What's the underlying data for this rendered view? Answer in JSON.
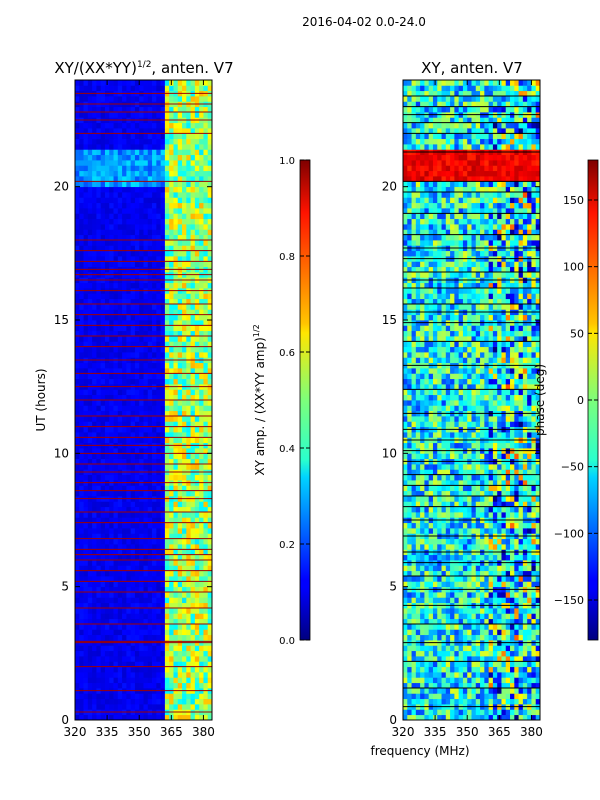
{
  "figure": {
    "suptitle": "2016-04-02 0.0-24.0",
    "shared_xlabel": "frequency (MHz)"
  },
  "chart_data": [
    {
      "type": "heatmap",
      "title_main": "XY/(XX*YY)",
      "title_sup": "1/2",
      "title_tail": ", anten. V7",
      "xlabel": "",
      "ylabel": "UT (hours)",
      "xlim": [
        320,
        384
      ],
      "ylim": [
        0,
        24
      ],
      "xticks": [
        "320",
        "335",
        "350",
        "365",
        "380"
      ],
      "xtick_values": [
        320,
        335,
        350,
        365,
        380
      ],
      "yticks": [
        "0",
        "5",
        "10",
        "15",
        "20"
      ],
      "ytick_values": [
        0,
        5,
        10,
        15,
        20
      ],
      "colorbar": {
        "label_main": "XY amp. / (XX*YY amp)",
        "label_sup": "1/2",
        "range": [
          0.0,
          1.0
        ],
        "ticks": [
          "0.0",
          "0.2",
          "0.4",
          "0.6",
          "0.8",
          "1.0"
        ],
        "tick_values": [
          0.0,
          0.2,
          0.4,
          0.6,
          0.8,
          1.0
        ],
        "colormap": "jet"
      },
      "features": {
        "background_value": 0.08,
        "bright_band_start_mhz": 362,
        "bright_band_value": 0.55,
        "flagged_hours": [
          0.3,
          1.1,
          2.0,
          2.9,
          2.95,
          3.6,
          4.2,
          4.8,
          5.2,
          5.6,
          6.0,
          6.2,
          6.4,
          6.8,
          7.4,
          7.8,
          8.3,
          8.6,
          8.9,
          9.3,
          9.6,
          10.0,
          10.3,
          10.6,
          11.0,
          11.4,
          12.0,
          12.5,
          13.0,
          13.5,
          14.0,
          14.4,
          14.8,
          15.2,
          15.6,
          16.1,
          16.5,
          16.7,
          16.9,
          17.2,
          17.6,
          18.0,
          20.2,
          22.0,
          22.5,
          22.8,
          23.1,
          23.5
        ],
        "elevated_band_hours": [
          20.1,
          21.3
        ],
        "elevated_band_value": 0.2
      }
    },
    {
      "type": "heatmap",
      "title_main": "XY, anten. V7",
      "xlabel": "frequency (MHz)",
      "ylabel": "",
      "xlim": [
        320,
        384
      ],
      "ylim": [
        0,
        24
      ],
      "xticks": [
        "320",
        "335",
        "350",
        "365",
        "380"
      ],
      "xtick_values": [
        320,
        335,
        350,
        365,
        380
      ],
      "yticks": [
        "0",
        "5",
        "10",
        "15",
        "20"
      ],
      "ytick_values": [
        0,
        5,
        10,
        15,
        20
      ],
      "colorbar": {
        "label": "phase (deg)",
        "range": [
          -180,
          180
        ],
        "ticks": [
          "−150",
          "−100",
          "−50",
          "0",
          "50",
          "100",
          "150"
        ],
        "tick_values": [
          -150,
          -100,
          -50,
          0,
          50,
          100,
          150
        ],
        "colormap": "jet"
      },
      "features": {
        "phase_offset_deg": -40,
        "hot_band_hours": [
          20.2,
          21.3
        ],
        "hot_band_value_deg": 140,
        "split_frequency_mhz": 361,
        "flagged_hours": [
          0.5,
          1.2,
          2.2,
          2.9,
          3.6,
          4.3,
          4.9,
          5.4,
          5.9,
          6.3,
          6.9,
          7.5,
          8.0,
          8.4,
          8.8,
          9.2,
          9.7,
          10.1,
          10.5,
          10.9,
          11.5,
          12.4,
          13.3,
          14.2,
          14.9,
          15.3,
          15.6,
          16.2,
          16.5,
          16.8,
          17.3,
          17.7,
          18.2,
          19.0,
          19.8,
          20.2,
          21.3,
          22.0,
          22.4,
          22.7,
          23.0,
          23.4
        ]
      }
    }
  ]
}
